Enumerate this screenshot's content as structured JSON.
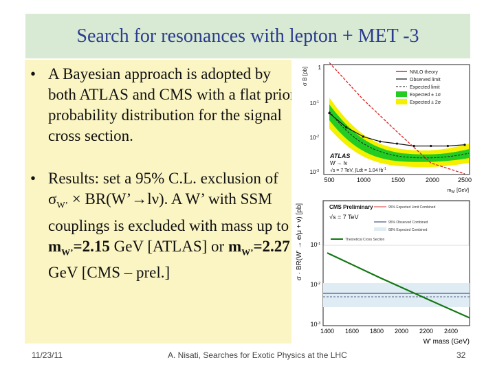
{
  "slide": {
    "title": "Search for resonances with lepton + MET -3",
    "bullets": [
      "A Bayesian approach is adopted by both ATLAS and CMS with a flat prior probability distribution for the signal cross section.",
      "Results: set a 95% C.L. exclusion of"
    ],
    "bullet2_rest": {
      "sigma": "σ",
      "sigma_sub": "W’",
      "times": " × BR(W’",
      "arrow": "→",
      "lnu": "lν). A W’ with SSM couplings is excluded with mass up to ",
      "mW1": "m",
      "mW1_sub": "W’",
      "mW1_val": "=2.15",
      "gev_atlas": " GeV [ATLAS] or ",
      "mW2": "m",
      "mW2_sub": "W’",
      "mW2_val": "=2.27",
      "gev_cms": " GeV [CMS – prel.]"
    },
    "bullet_symbol": "•",
    "footer": {
      "date": "11/23/11",
      "center": "A. Nisati, Searches for Exotic Physics at the LHC",
      "page": "32"
    }
  },
  "chart_data": [
    {
      "type": "line",
      "ylabel": "σ B [pb]",
      "xlabel": "m",
      "xlabel_sub": "W’",
      "xlabel_unit": " [GeV]",
      "log_y": true,
      "x_ticks": [
        "500",
        "1000",
        "1500",
        "2000",
        "2500"
      ],
      "y_ticks": [
        "1",
        "10",
        "10",
        "10"
      ],
      "y_tick_exps": [
        "",
        "-1",
        "-2",
        "-3"
      ],
      "legend": [
        "NNLO theory",
        "Observed limit",
        "Expected limit",
        "Expected ± 1σ",
        "Expected ± 2σ"
      ],
      "annotations": [
        "ATLAS",
        "W’→ lν",
        "√s = 7 TeV, ∫Ldt = 1.04 fb"
      ],
      "annotation_exp": "-1",
      "colors": {
        "theory": "#dd2222",
        "observed": "#111111",
        "band1": "#22cc22",
        "band2": "#f4f000"
      },
      "series": [
        {
          "name": "NNLO theory",
          "x": [
            500,
            1000,
            1500,
            2000,
            2500
          ],
          "y": [
            1.3,
            0.12,
            0.015,
            0.002,
            0.0003
          ]
        },
        {
          "name": "Observed limit",
          "x": [
            500,
            750,
            1000,
            1250,
            1500,
            1750,
            2000,
            2250,
            2500
          ],
          "y": [
            0.05,
            0.02,
            0.011,
            0.008,
            0.007,
            0.006,
            0.006,
            0.006,
            0.0065
          ]
        }
      ]
    },
    {
      "type": "line",
      "ylabel": "σ · BR(W’ → e/μ + ν) [pb]",
      "xlabel": "W’ mass (GeV)",
      "log_y": true,
      "x_ticks": [
        "1400",
        "1600",
        "1800",
        "2000",
        "2200",
        "2400"
      ],
      "y_ticks": [
        "10",
        "10",
        "10"
      ],
      "y_tick_exps": [
        "-1",
        "-2",
        "-3"
      ],
      "legend_title": "CMS Preliminary",
      "legend_sub": "√s = 7 TeV",
      "legend": [
        "95% Observed Combined",
        "68% Expected Combined",
        "95% Expected Limit Combined",
        "Theoretical Cross Section"
      ],
      "colors": {
        "theory": "#117711",
        "observed": "#222255",
        "band": "#e0ecf4"
      },
      "series": [
        {
          "name": "Theoretical Cross Section",
          "x": [
            1400,
            1800,
            2200,
            2500
          ],
          "y": [
            0.06,
            0.015,
            0.004,
            0.0015
          ]
        }
      ]
    }
  ]
}
